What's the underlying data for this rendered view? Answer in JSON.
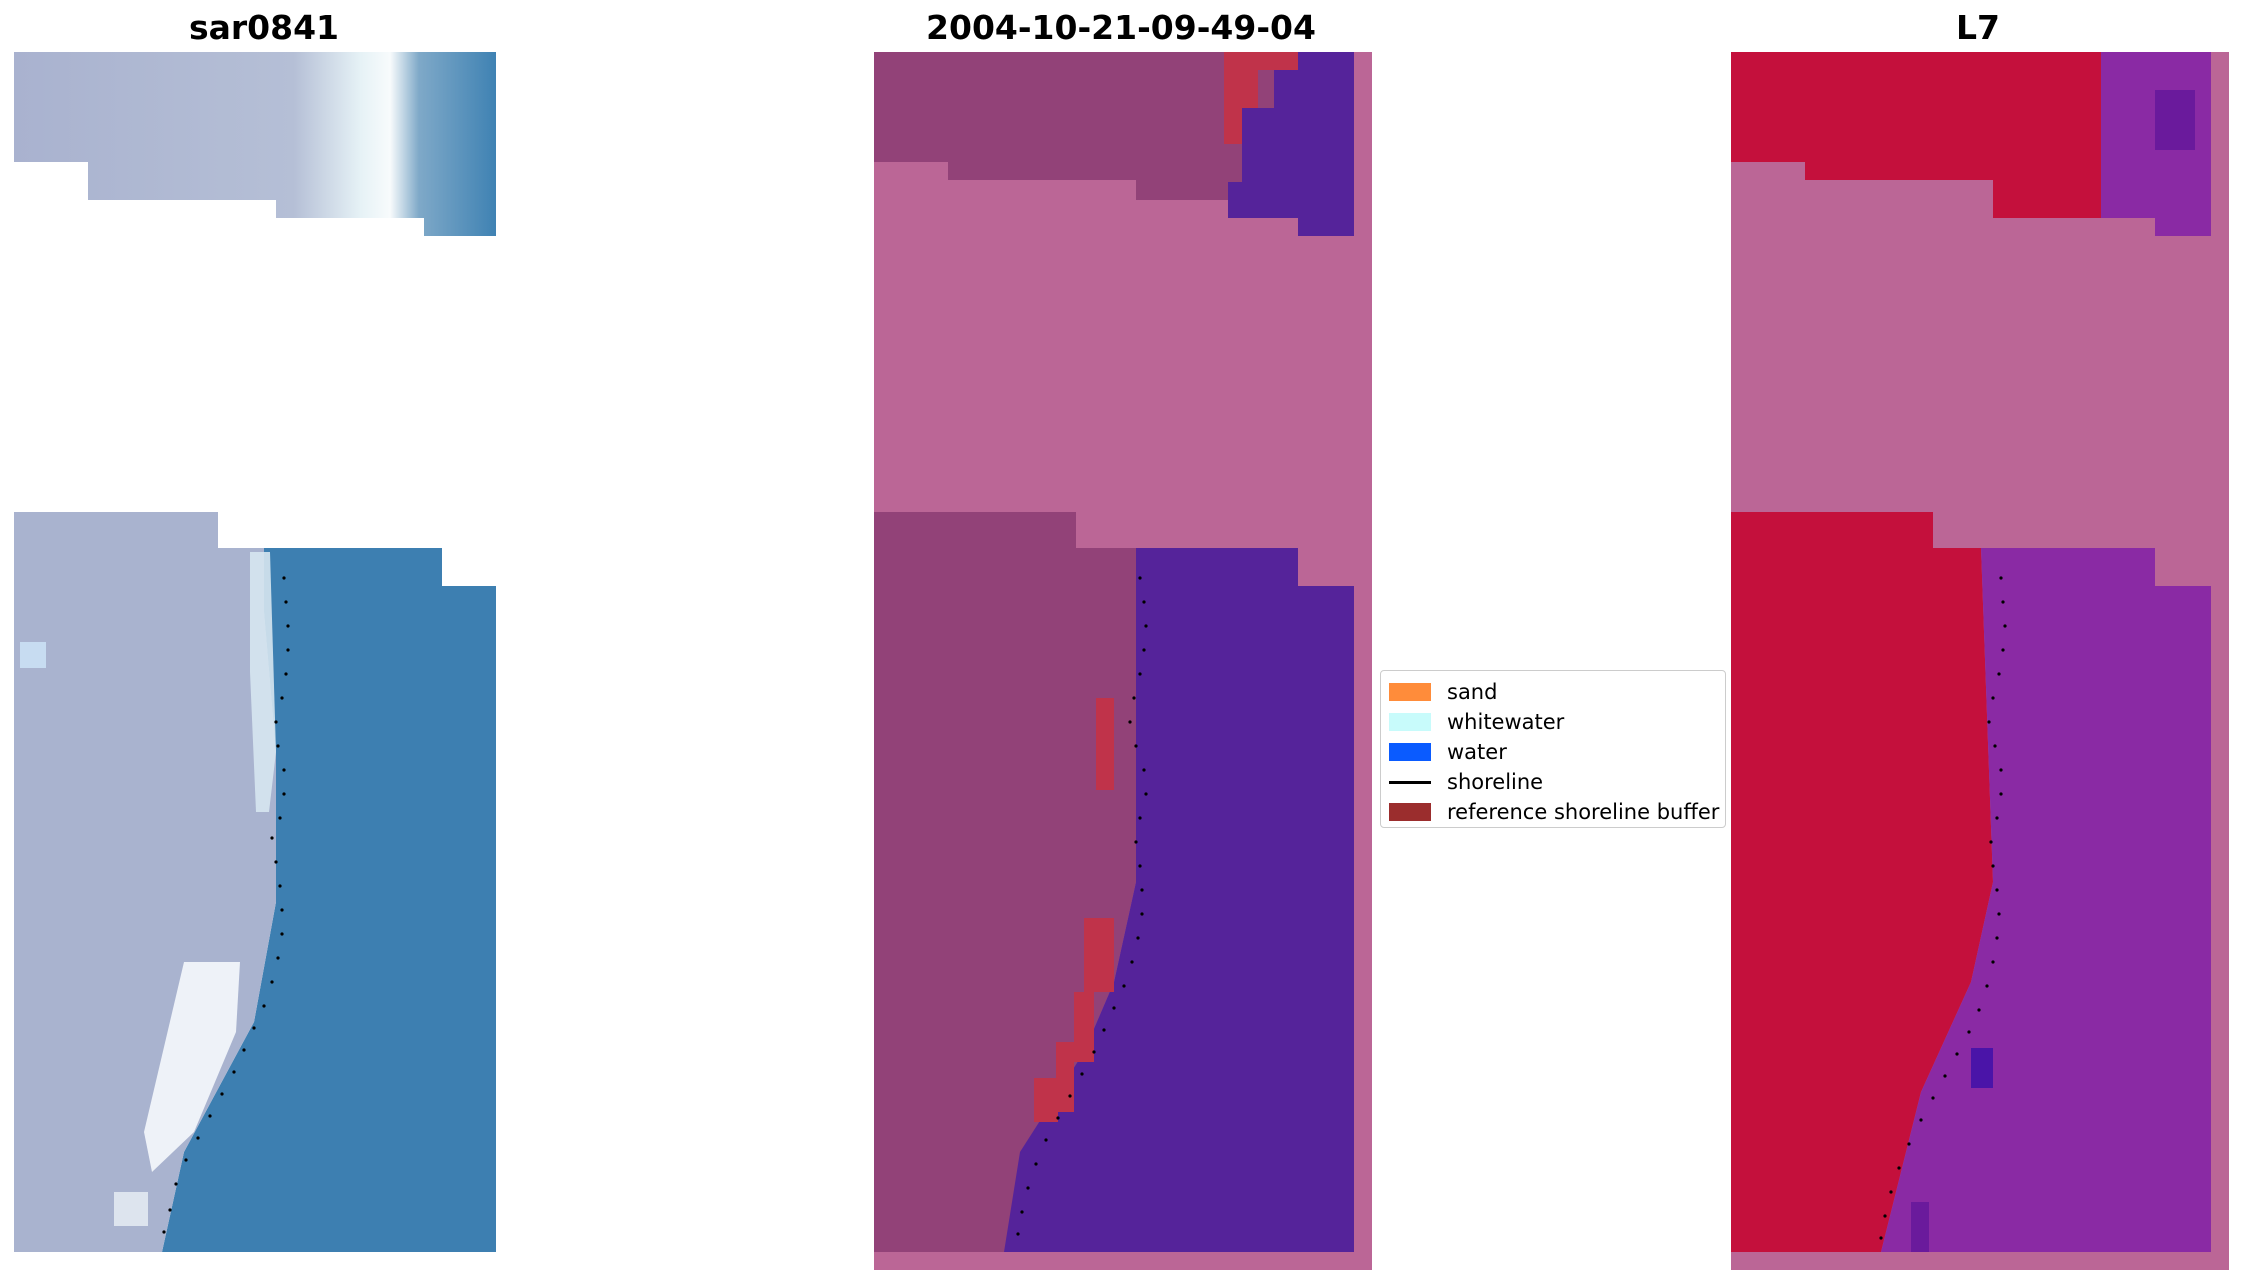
{
  "panels": [
    {
      "title": "sar0841"
    },
    {
      "title": "2004-10-21-09-49-04"
    },
    {
      "title": "L7"
    }
  ],
  "legend": {
    "items": [
      {
        "label": "sand",
        "color": "#ff8c3a",
        "kind": "patch"
      },
      {
        "label": "whitewater",
        "color": "#c8fbfb",
        "kind": "patch"
      },
      {
        "label": "water",
        "color": "#0a5bff",
        "kind": "patch"
      },
      {
        "label": "shoreline",
        "color": "#000000",
        "kind": "line"
      },
      {
        "label": "reference shoreline buffer",
        "color": "#9b2d2d",
        "kind": "patch"
      }
    ]
  },
  "colors": {
    "rgb_sand": "#aab4d0",
    "rgb_water": "#3f7fb0",
    "rgb_white": "#e8f2f8",
    "class_mask": "#bb6696",
    "class_land": "#924278",
    "class_water": "#55239a",
    "class_buffer": "#c0334a",
    "mndwi_land": "#c4103c",
    "mndwi_water": "#8a2aa4",
    "shoreline": "#000000"
  }
}
